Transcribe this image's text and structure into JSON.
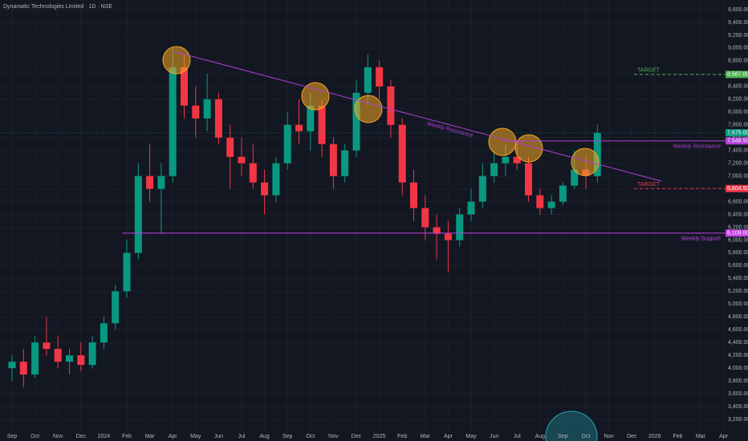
{
  "chart_data": {
    "type": "candlestick",
    "title": "Dynamatic Technologies Limited · 1D · NSE",
    "categories": [
      "Sep",
      null,
      "Oct",
      null,
      "Nov",
      null,
      "Dec",
      null,
      "2024",
      null,
      "Feb",
      null,
      "Mar",
      null,
      "Apr",
      null,
      "May",
      null,
      "Jun",
      null,
      "Jul",
      null,
      "Aug",
      null,
      "Sep",
      null,
      "Oct",
      null,
      "Nov",
      null,
      "Dec",
      null,
      "2025",
      null,
      "Feb",
      null,
      "Mar",
      null,
      "Apr",
      null,
      "May",
      null,
      "Jun",
      null,
      "Jul",
      null,
      "Aug",
      null,
      "Sep",
      null,
      "Oct",
      null,
      "Nov",
      null,
      "Dec",
      null,
      "2026",
      null,
      "Feb",
      null,
      "Mar",
      null,
      "Apr",
      null
    ],
    "open": [
      4000,
      4100,
      3900,
      4400,
      4300,
      4100,
      4200,
      4050,
      4400,
      4700,
      5200,
      5800,
      7000,
      6800,
      7000,
      8700,
      8100,
      7900,
      8200,
      7600,
      7300,
      7200,
      6900,
      6700,
      7200,
      7800,
      7700,
      8100,
      7500,
      7000,
      7400,
      8300,
      8700,
      8400,
      7800,
      6900,
      6500,
      6200,
      6100,
      6000,
      6400,
      6600,
      7000,
      7200,
      7300,
      7200,
      6700,
      6500,
      6600,
      6850,
      7100,
      7000,
      null,
      null,
      null,
      null,
      null,
      null,
      null,
      null,
      null,
      null,
      null,
      null
    ],
    "high": [
      4200,
      4300,
      4500,
      4800,
      4500,
      4300,
      4400,
      4500,
      4800,
      5300,
      6000,
      7200,
      7500,
      7200,
      9000,
      8900,
      8400,
      8600,
      8300,
      7800,
      7600,
      7500,
      7100,
      7300,
      8000,
      8200,
      8300,
      8200,
      7600,
      7500,
      8500,
      8900,
      8800,
      8500,
      7900,
      7100,
      6700,
      6400,
      6300,
      6500,
      6800,
      7200,
      7400,
      7500,
      7500,
      7300,
      6800,
      6700,
      6900,
      7400,
      7300,
      7800,
      null,
      null,
      null,
      null,
      null,
      null,
      null,
      null,
      null,
      null,
      null,
      null
    ],
    "low": [
      3800,
      3700,
      3850,
      4200,
      4000,
      3900,
      3950,
      4000,
      4300,
      4600,
      5100,
      5700,
      6600,
      6100,
      6900,
      7900,
      7600,
      7700,
      7500,
      6800,
      7000,
      6800,
      6400,
      6600,
      7100,
      7500,
      7400,
      7300,
      6800,
      6900,
      7300,
      8100,
      8200,
      7600,
      6700,
      6300,
      6000,
      5700,
      5500,
      5900,
      6300,
      6500,
      6900,
      7000,
      7100,
      6600,
      6400,
      6400,
      6550,
      6800,
      6800,
      6900,
      null,
      null,
      null,
      null,
      null,
      null,
      null,
      null,
      null,
      null,
      null,
      null
    ],
    "close": [
      4100,
      3900,
      4400,
      4300,
      4100,
      4200,
      4050,
      4400,
      4700,
      5200,
      5800,
      7000,
      6800,
      7000,
      8700,
      8100,
      7900,
      8200,
      7600,
      7300,
      7200,
      6900,
      6700,
      7200,
      7800,
      7700,
      8100,
      7500,
      7000,
      7400,
      8300,
      8700,
      8400,
      7800,
      6900,
      6500,
      6200,
      6100,
      6000,
      6400,
      6600,
      7000,
      7200,
      7300,
      7200,
      6700,
      6500,
      6600,
      6850,
      7100,
      7000,
      7675,
      null,
      null,
      null,
      null,
      null,
      null,
      null,
      null,
      null,
      null,
      null,
      null
    ],
    "up_color": "#089981",
    "down_color": "#f23645",
    "ylim": [
      3012,
      9750
    ],
    "yticks": [
      {
        "value": 3200,
        "label": "3,200.00"
      },
      {
        "value": 3400,
        "label": "3,400.00"
      },
      {
        "value": 3600,
        "label": "3,600.00"
      },
      {
        "value": 3800,
        "label": "3,800.00"
      },
      {
        "value": 4000,
        "label": "4,000.00"
      },
      {
        "value": 4200,
        "label": "4,200.00"
      },
      {
        "value": 4400,
        "label": "4,400.00"
      },
      {
        "value": 4600,
        "label": "4,600.00"
      },
      {
        "value": 4800,
        "label": "4,800.00"
      },
      {
        "value": 5000,
        "label": "5,000.00"
      },
      {
        "value": 5200,
        "label": "5,200.00"
      },
      {
        "value": 5400,
        "label": "5,400.00"
      },
      {
        "value": 5600,
        "label": "5,600.00"
      },
      {
        "value": 5800,
        "label": "5,800.00"
      },
      {
        "value": 6000,
        "label": "6,000.00"
      },
      {
        "value": 6200,
        "label": "6,200.00"
      },
      {
        "value": 6400,
        "label": "6,400.00"
      },
      {
        "value": 6600,
        "label": "6,600.00"
      },
      {
        "value": 6800,
        "label": "6,800.00"
      },
      {
        "value": 7000,
        "label": "7,000.00"
      },
      {
        "value": 7200,
        "label": "7,200.00"
      },
      {
        "value": 7400,
        "label": "7,400.00"
      },
      {
        "value": 7600,
        "label": "7,600.00"
      },
      {
        "value": 7800,
        "label": "7,800.00"
      },
      {
        "value": 8000,
        "label": "8,000.00"
      },
      {
        "value": 8200,
        "label": "8,200.00"
      },
      {
        "value": 8400,
        "label": "8,400.00"
      },
      {
        "value": 8600,
        "label": "8,600.00"
      },
      {
        "value": 8800,
        "label": "8,800.00"
      },
      {
        "value": 9000,
        "label": "9,000.00"
      },
      {
        "value": 9200,
        "label": "9,200.00"
      },
      {
        "value": 9400,
        "label": "9,400.00"
      },
      {
        "value": 9600,
        "label": "9,600.00"
      }
    ],
    "grid": true,
    "levels": [
      {
        "value": 8587,
        "label": "8,587.00",
        "text": "TARGET",
        "color": "#4caf50",
        "dashed": true,
        "from": 54.2
      },
      {
        "value": 7548.5,
        "label": "7,548.50",
        "text": "Weekly Resistance",
        "color": "#b03fd6",
        "dashed": false,
        "from": 42.7
      },
      {
        "value": 6804.5,
        "label": "6,804.50",
        "text": "TARGET",
        "color": "#f23645",
        "dashed": true,
        "from": 54.2
      },
      {
        "value": 6109,
        "label": "6,109.00",
        "text": "Weekly Support",
        "color": "#c040e0",
        "dashed": false,
        "from": 9.6
      }
    ],
    "last_price": {
      "value": 7675,
      "label": "7,675.00",
      "color": "#089981"
    },
    "trendlines": [
      {
        "text": "Weekly Resistance",
        "x": [
          14,
          56.6
        ],
        "y": [
          8950,
          6920
        ],
        "color": "#b03fd6"
      }
    ]
  }
}
